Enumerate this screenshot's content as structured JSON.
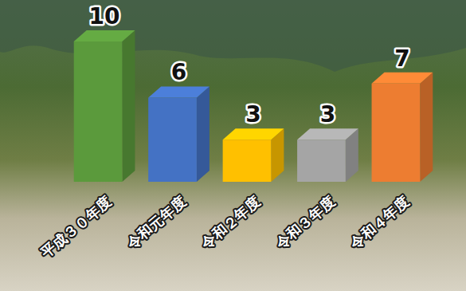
{
  "chart_data": {
    "type": "bar",
    "categories": [
      "平成３０年度",
      "令和元年度",
      "令和２年度",
      "令和３年度",
      "令和４年度"
    ],
    "values": [
      10,
      6,
      3,
      3,
      7
    ],
    "colors": [
      "#5b9a3c",
      "#4472c4",
      "#ffc000",
      "#a5a5a5",
      "#ed7d31"
    ],
    "ylim": [
      0,
      10
    ],
    "data_labels": true,
    "tick_labels": "x",
    "grid": false
  }
}
